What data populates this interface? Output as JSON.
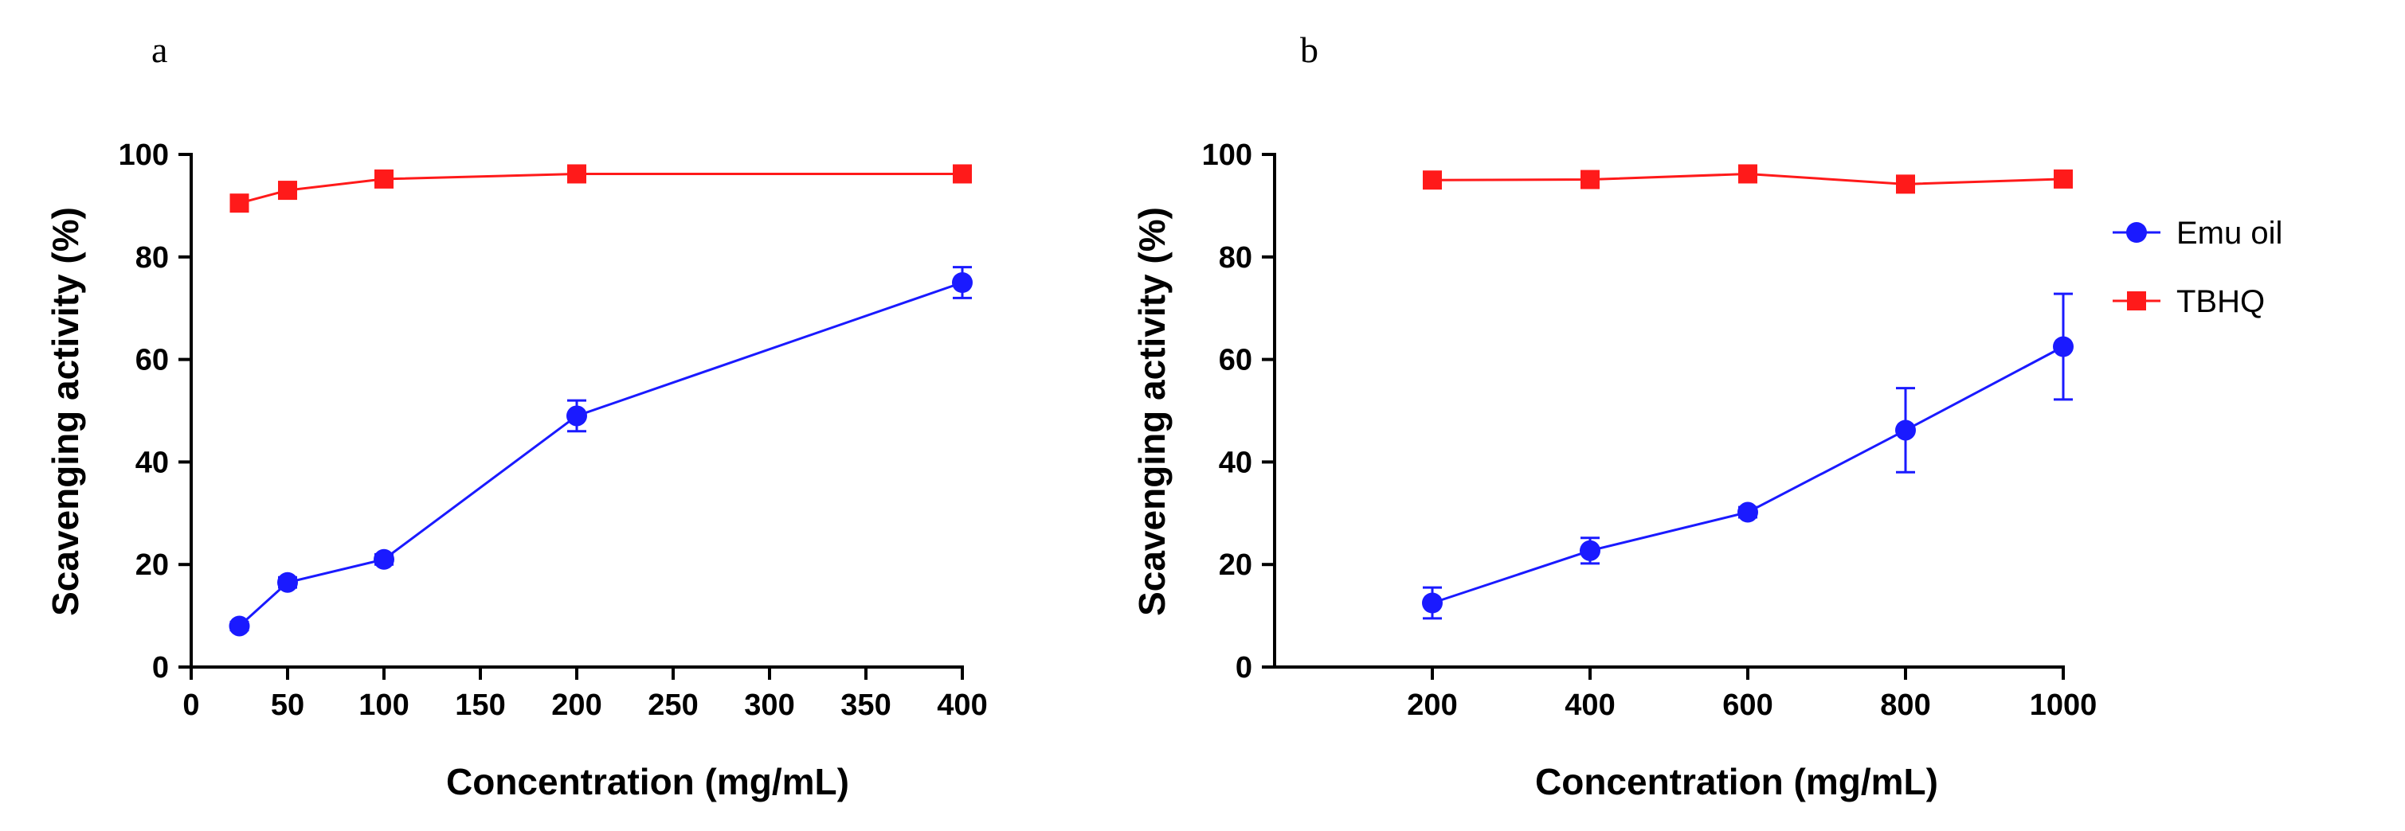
{
  "colors": {
    "emu": "#1a1aff",
    "tbhq": "#ff1a1a",
    "axis": "#000000"
  },
  "legend": [
    {
      "name": "Emu oil",
      "marker": "circle",
      "color_key": "emu"
    },
    {
      "name": "TBHQ",
      "marker": "square",
      "color_key": "tbhq"
    }
  ],
  "chart_data": [
    {
      "panel": "a",
      "type": "line",
      "xlabel": "Concentration (mg/mL)",
      "ylabel": "Scavenging activity (%)",
      "xlim": [
        0,
        400
      ],
      "ylim": [
        0,
        100
      ],
      "xticks": [
        0,
        50,
        100,
        150,
        200,
        250,
        300,
        350,
        400
      ],
      "yticks": [
        0,
        20,
        40,
        60,
        80,
        100
      ],
      "series": [
        {
          "name": "Emu oil",
          "color_key": "emu",
          "marker": "circle",
          "x": [
            25,
            50,
            100,
            200,
            400
          ],
          "y": [
            8,
            16.5,
            21,
            49,
            75
          ],
          "err": [
            0.8,
            1,
            1,
            3,
            3
          ]
        },
        {
          "name": "TBHQ",
          "color_key": "tbhq",
          "marker": "square",
          "x": [
            25,
            50,
            100,
            200,
            400
          ],
          "y": [
            90.5,
            93,
            95.2,
            96.2,
            96.2
          ],
          "err": [
            0.5,
            0.5,
            0.5,
            0.5,
            0.5
          ]
        }
      ]
    },
    {
      "panel": "b",
      "type": "line",
      "xlabel": "Concentration (mg/mL)",
      "ylabel": "Scavenging activity (%)",
      "xlim": [
        0,
        1000
      ],
      "ylim": [
        0,
        100
      ],
      "xticks": [
        200,
        400,
        600,
        800,
        1000
      ],
      "yticks": [
        0,
        20,
        40,
        60,
        80,
        100
      ],
      "series": [
        {
          "name": "Emu oil",
          "color_key": "emu",
          "marker": "circle",
          "x": [
            200,
            400,
            600,
            800,
            1000
          ],
          "y": [
            12.5,
            22.7,
            30.2,
            46.2,
            62.5
          ],
          "err": [
            3,
            2.5,
            1,
            8.2,
            10.3
          ]
        },
        {
          "name": "TBHQ",
          "color_key": "tbhq",
          "marker": "square",
          "x": [
            200,
            400,
            600,
            800,
            1000
          ],
          "y": [
            95,
            95.1,
            96.2,
            94.2,
            95.2
          ],
          "err": [
            0.5,
            0.5,
            0.5,
            0.5,
            0.5
          ]
        }
      ]
    }
  ]
}
